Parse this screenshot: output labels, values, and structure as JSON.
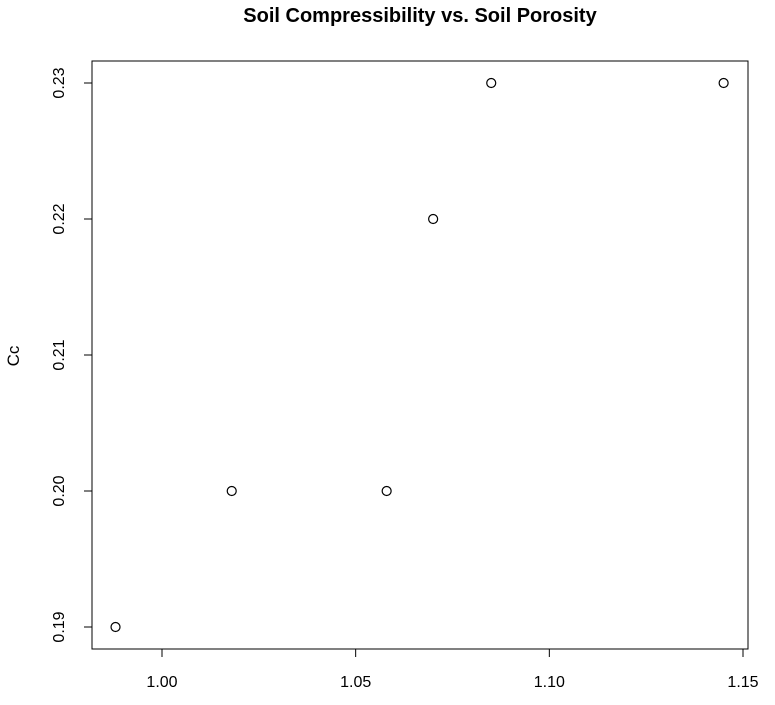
{
  "chart_data": {
    "type": "scatter",
    "title": "Soil Compressibility vs. Soil Porosity",
    "xlabel": "",
    "ylabel": "Cc",
    "xlim": [
      0.98,
      1.15
    ],
    "ylim": [
      0.19,
      0.23
    ],
    "xticks": [
      "1.00",
      "1.05",
      "1.10",
      "1.15"
    ],
    "yticks": [
      "0.19",
      "0.20",
      "0.21",
      "0.22",
      "0.23"
    ],
    "grid": false,
    "marker": "open-circle",
    "points": [
      {
        "x": 0.988,
        "y": 0.19
      },
      {
        "x": 1.018,
        "y": 0.2
      },
      {
        "x": 1.058,
        "y": 0.2
      },
      {
        "x": 1.07,
        "y": 0.22
      },
      {
        "x": 1.085,
        "y": 0.23
      },
      {
        "x": 1.145,
        "y": 0.23
      }
    ],
    "colors": {
      "foreground": "#000000",
      "background": "#ffffff"
    }
  }
}
